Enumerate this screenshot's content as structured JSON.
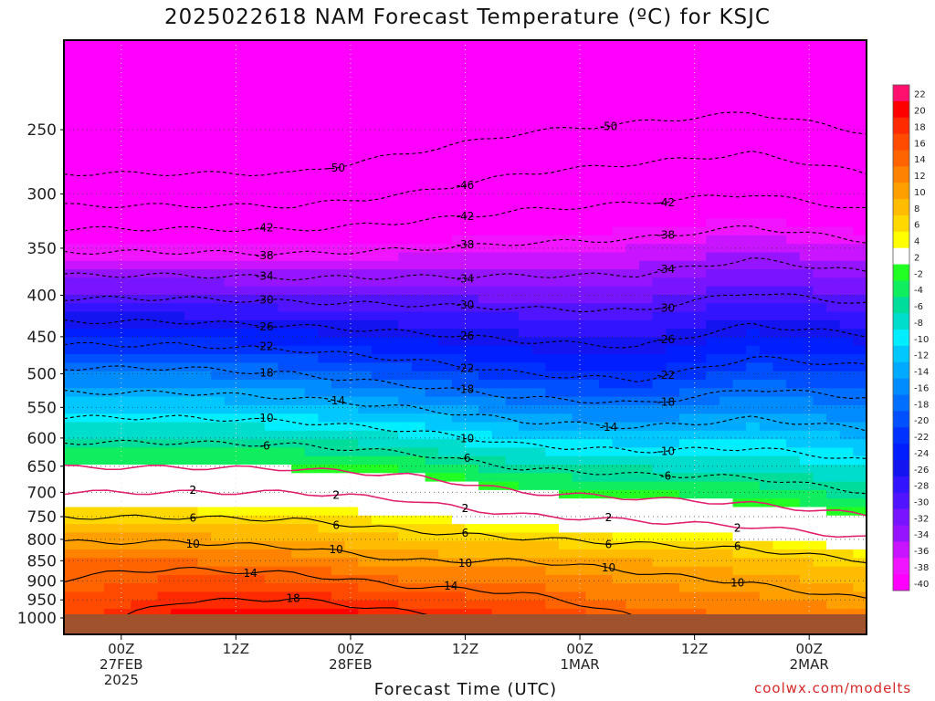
{
  "title": "2025022618 NAM Forecast Temperature (ºC) for KSJC",
  "credit": "coolwx.com/modelts",
  "chart_data": {
    "type": "heatmap",
    "title": "2025022618 NAM Forecast Temperature (ºC) for KSJC",
    "xlabel": "Forecast Time (UTC)",
    "ylabel": "",
    "x_ticks": [
      {
        "hour": 6,
        "lines": [
          "00Z",
          "27FEB",
          "2025"
        ]
      },
      {
        "hour": 18,
        "lines": [
          "12Z"
        ]
      },
      {
        "hour": 30,
        "lines": [
          "00Z",
          "28FEB"
        ]
      },
      {
        "hour": 42,
        "lines": [
          "12Z"
        ]
      },
      {
        "hour": 54,
        "lines": [
          "00Z",
          "1MAR"
        ]
      },
      {
        "hour": 66,
        "lines": [
          "12Z"
        ]
      },
      {
        "hour": 78,
        "lines": [
          "00Z",
          "2MAR"
        ]
      }
    ],
    "xlim": [
      0,
      84
    ],
    "y_ticks": [
      250,
      300,
      350,
      400,
      450,
      500,
      550,
      600,
      650,
      700,
      750,
      800,
      850,
      900,
      950,
      1000
    ],
    "ylim": [
      1000,
      200
    ],
    "y_scale": "log-pressure (hPa)",
    "grid": "dotted",
    "colorbar_labels": [
      22,
      20,
      18,
      16,
      14,
      12,
      10,
      8,
      6,
      4,
      2,
      -2,
      -4,
      -6,
      -8,
      -10,
      -12,
      -14,
      -16,
      -18,
      -20,
      -22,
      -24,
      -26,
      -28,
      -30,
      -32,
      -34,
      -36,
      -38,
      -40
    ],
    "colorbar_colors": [
      "#ff0f6e",
      "#ff0000",
      "#ff2a00",
      "#ff4a00",
      "#ff6400",
      "#ff8200",
      "#ffa000",
      "#ffbc00",
      "#ffd800",
      "#ffff00",
      "#ffffff",
      "#22ff22",
      "#10ee60",
      "#00dd9a",
      "#00ddcc",
      "#00eeff",
      "#00c8ff",
      "#00aaff",
      "#008cff",
      "#006eff",
      "#0050ff",
      "#0032ff",
      "#001eff",
      "#1414f0",
      "#3214ff",
      "#5014ff",
      "#7814ff",
      "#9614ff",
      "#c814ff",
      "#f014ff",
      "#ff00ff"
    ],
    "series": [
      {
        "name": "1000 hPa",
        "hour": [
          0,
          12,
          24,
          36,
          48,
          60,
          72,
          84
        ],
        "values": [
          16,
          20,
          21,
          19,
          17,
          14,
          13,
          12
        ]
      },
      {
        "name": "850 hPa",
        "hour": [
          0,
          12,
          24,
          36,
          48,
          60,
          72,
          84
        ],
        "values": [
          13,
          13,
          12,
          10,
          10,
          9,
          8,
          6
        ]
      },
      {
        "name": "700 hPa",
        "hour": [
          0,
          12,
          24,
          36,
          48,
          60,
          72,
          84
        ],
        "values": [
          2,
          2,
          2,
          1,
          -2,
          -3,
          -4,
          -6
        ]
      },
      {
        "name": "500 hPa",
        "hour": [
          0,
          12,
          24,
          36,
          48,
          60,
          72,
          84
        ],
        "values": [
          -17,
          -17,
          -18,
          -20,
          -22,
          -23,
          -20,
          -21
        ]
      },
      {
        "name": "300 hPa",
        "hour": [
          0,
          12,
          24,
          36,
          48,
          60,
          72,
          84
        ],
        "values": [
          -48,
          -48,
          -48,
          -46,
          -44,
          -43,
          -42,
          -44
        ]
      }
    ],
    "contour_labels": [
      -50,
      -50,
      -46,
      -42,
      -42,
      -42,
      -38,
      -38,
      -38,
      -34,
      -34,
      -34,
      -30,
      -30,
      -30,
      -26,
      -26,
      -26,
      -22,
      -22,
      -22,
      -18,
      -18,
      -18,
      -14,
      -14,
      -10,
      -10,
      -10,
      -6,
      -6,
      -6,
      2,
      2,
      2,
      2,
      2,
      6,
      6,
      6,
      6,
      10,
      10,
      10,
      10,
      14,
      14,
      18,
      10,
      6
    ]
  }
}
